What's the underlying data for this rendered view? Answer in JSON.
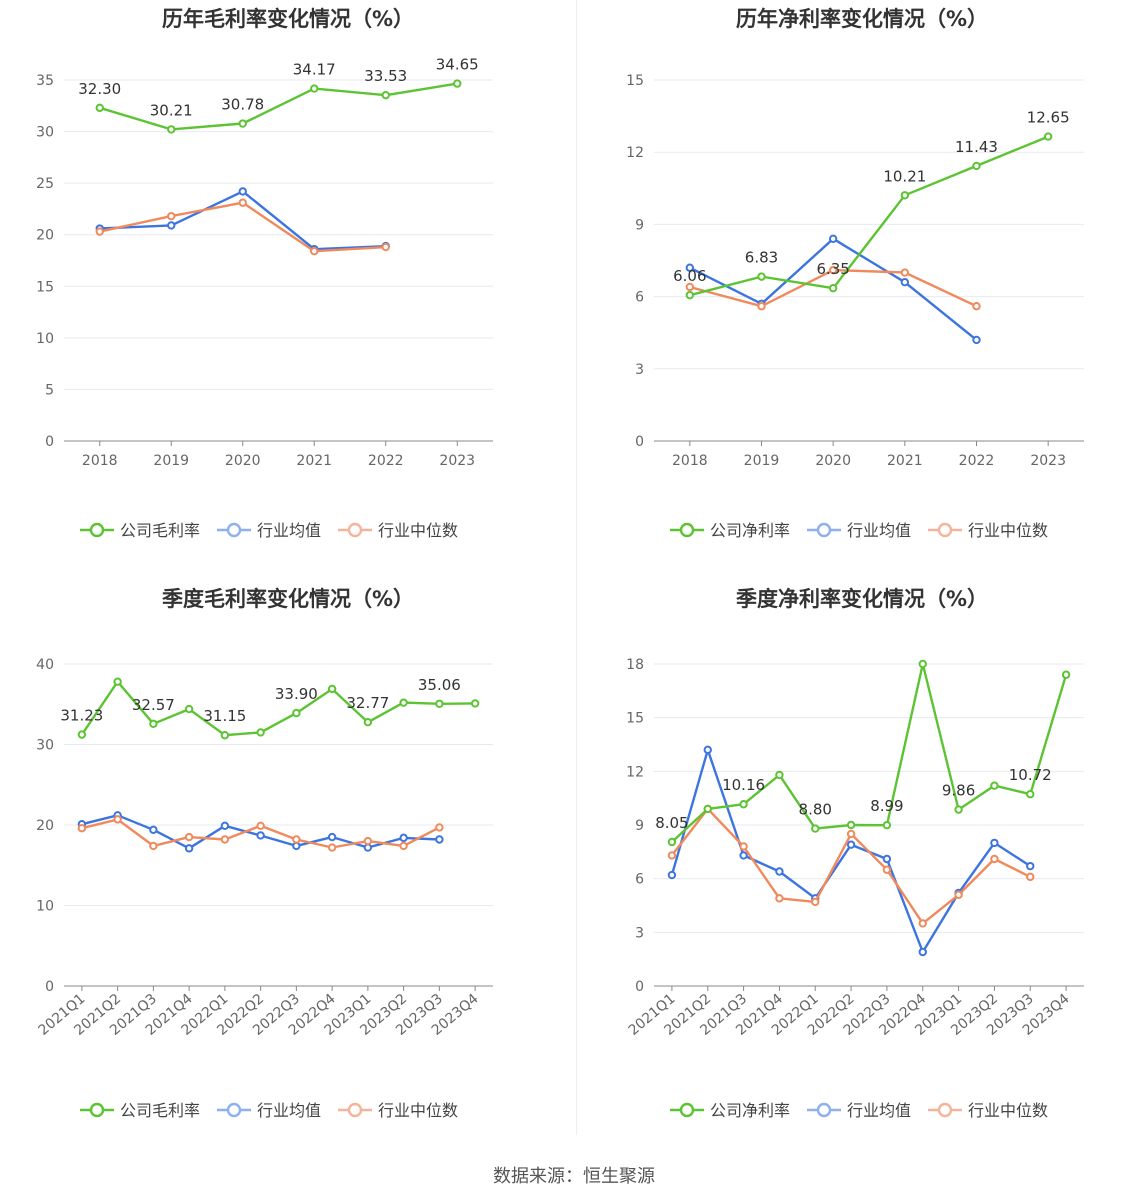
{
  "colors": {
    "company": "#5cc433",
    "avg": "#3c74e0",
    "median": "#f08a5d",
    "grid": "#e6e9f0",
    "axis": "#888888",
    "text": "#333333",
    "tick": "#666666"
  },
  "source_text": "数据来源：恒生聚源",
  "chart_data": [
    {
      "type": "line",
      "title": "历年毛利率变化情况（%）",
      "categories": [
        "2018",
        "2019",
        "2020",
        "2021",
        "2022",
        "2023"
      ],
      "ylim": [
        0,
        35
      ],
      "yticks": [
        0,
        5,
        10,
        15,
        20,
        25,
        30,
        35
      ],
      "legend": [
        "公司毛利率",
        "行业均值",
        "行业中位数"
      ],
      "legend_position": "bottom",
      "grid": true,
      "series": [
        {
          "name": "公司毛利率",
          "role": "company",
          "values": [
            32.3,
            30.21,
            30.78,
            34.17,
            33.53,
            34.65
          ],
          "labels": [
            "32.30",
            "30.21",
            "30.78",
            "34.17",
            "33.53",
            "34.65"
          ]
        },
        {
          "name": "行业均值",
          "role": "avg",
          "values": [
            20.6,
            20.9,
            24.2,
            18.6,
            18.9,
            null
          ]
        },
        {
          "name": "行业中位数",
          "role": "median",
          "values": [
            20.3,
            21.8,
            23.1,
            18.4,
            18.8,
            null
          ]
        }
      ]
    },
    {
      "type": "line",
      "title": "历年净利率变化情况（%）",
      "categories": [
        "2018",
        "2019",
        "2020",
        "2021",
        "2022",
        "2023"
      ],
      "ylim": [
        0,
        15
      ],
      "yticks": [
        0,
        3,
        6,
        9,
        12,
        15
      ],
      "legend": [
        "公司净利率",
        "行业均值",
        "行业中位数"
      ],
      "legend_position": "bottom",
      "grid": true,
      "series": [
        {
          "name": "公司净利率",
          "role": "company",
          "values": [
            6.06,
            6.83,
            6.35,
            10.21,
            11.43,
            12.65
          ],
          "labels": [
            "6.06",
            "6.83",
            "6.35",
            "10.21",
            "11.43",
            "12.65"
          ]
        },
        {
          "name": "行业均值",
          "role": "avg",
          "values": [
            7.2,
            5.7,
            8.4,
            6.6,
            4.2,
            null
          ]
        },
        {
          "name": "行业中位数",
          "role": "median",
          "values": [
            6.4,
            5.6,
            7.1,
            7.0,
            5.6,
            null
          ]
        }
      ]
    },
    {
      "type": "line",
      "title": "季度毛利率变化情况（%）",
      "categories": [
        "2021Q1",
        "2021Q2",
        "2021Q3",
        "2021Q4",
        "2022Q1",
        "2022Q2",
        "2022Q3",
        "2022Q4",
        "2023Q1",
        "2023Q2",
        "2023Q3",
        "2023Q4"
      ],
      "ylim": [
        0,
        40
      ],
      "yticks": [
        0,
        10,
        20,
        30,
        40
      ],
      "legend": [
        "公司毛利率",
        "行业均值",
        "行业中位数"
      ],
      "legend_position": "bottom",
      "grid": true,
      "series": [
        {
          "name": "公司毛利率",
          "role": "company",
          "values": [
            31.23,
            37.8,
            32.57,
            34.4,
            31.15,
            31.5,
            33.9,
            36.9,
            32.77,
            35.2,
            35.06,
            35.1
          ],
          "labels": [
            "31.23",
            "",
            "32.57",
            "",
            "31.15",
            "",
            "33.90",
            "",
            "32.77",
            "",
            "35.06",
            ""
          ]
        },
        {
          "name": "行业均值",
          "role": "avg",
          "values": [
            20.1,
            21.2,
            19.4,
            17.1,
            19.9,
            18.7,
            17.4,
            18.5,
            17.2,
            18.4,
            18.2,
            null
          ]
        },
        {
          "name": "行业中位数",
          "role": "median",
          "values": [
            19.6,
            20.7,
            17.4,
            18.5,
            18.2,
            19.9,
            18.2,
            17.2,
            18.0,
            17.4,
            19.7,
            null
          ]
        }
      ]
    },
    {
      "type": "line",
      "title": "季度净利率变化情况（%）",
      "categories": [
        "2021Q1",
        "2021Q2",
        "2021Q3",
        "2021Q4",
        "2022Q1",
        "2022Q2",
        "2022Q3",
        "2022Q4",
        "2023Q1",
        "2023Q2",
        "2023Q3",
        "2023Q4"
      ],
      "ylim": [
        0,
        18
      ],
      "yticks": [
        0,
        3,
        6,
        9,
        12,
        15,
        18
      ],
      "legend": [
        "公司净利率",
        "行业均值",
        "行业中位数"
      ],
      "legend_position": "bottom",
      "grid": true,
      "series": [
        {
          "name": "公司净利率",
          "role": "company",
          "values": [
            8.05,
            9.9,
            10.16,
            11.8,
            8.8,
            9.0,
            8.99,
            18.0,
            9.86,
            11.2,
            10.72,
            17.4
          ],
          "labels": [
            "8.05",
            "",
            "10.16",
            "",
            "8.80",
            "",
            "8.99",
            "",
            "9.86",
            "",
            "10.72",
            ""
          ]
        },
        {
          "name": "行业均值",
          "role": "avg",
          "values": [
            6.2,
            13.2,
            7.3,
            6.4,
            4.9,
            7.9,
            7.1,
            1.9,
            5.2,
            8.0,
            6.7,
            null
          ]
        },
        {
          "name": "行业中位数",
          "role": "median",
          "values": [
            7.3,
            9.9,
            7.8,
            4.9,
            4.7,
            8.5,
            6.5,
            3.5,
            5.1,
            7.1,
            6.1,
            null
          ]
        }
      ]
    }
  ]
}
